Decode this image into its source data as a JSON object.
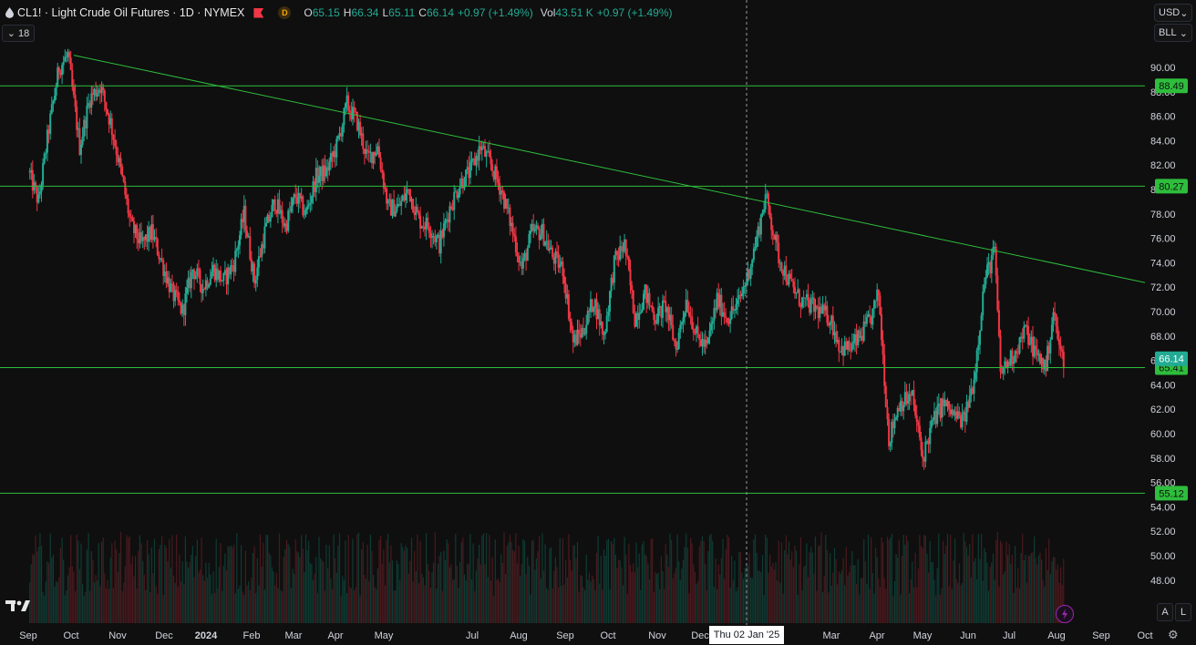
{
  "legend": {
    "title": "CL1! · Light Crude Oil Futures · 1D · NYMEX",
    "badge": "D",
    "o_key": "O",
    "o_val": "65.15",
    "h_key": "H",
    "h_val": "66.34",
    "l_key": "L",
    "l_val": "65.11",
    "c_key": "C",
    "c_val": "66.14",
    "change": "+0.97 (+1.49%)",
    "vol_key": "Vol",
    "vol_val": "43.51 K",
    "vol_change": "+0.97 (+1.49%)"
  },
  "indicator_count": "18",
  "axis_controls": {
    "currency": "USD",
    "unit": "BLL",
    "auto_btn": "A",
    "log_btn": "L"
  },
  "crosshair_date": "Thu 02 Jan '25",
  "colors": {
    "up": "#22ab94",
    "down": "#f23645",
    "level_line": "#2ebd3c",
    "trendline": "#2ebd3c",
    "background": "#0f0f0f"
  },
  "chart_data": {
    "type": "candlestick",
    "symbol": "CL1!",
    "price_axis_ticks": [
      "90.00",
      "88.00",
      "86.00",
      "84.00",
      "82.00",
      "80.00",
      "78.00",
      "76.00",
      "74.00",
      "72.00",
      "70.00",
      "68.00",
      "66.00",
      "64.00",
      "62.00",
      "60.00",
      "58.00",
      "56.00",
      "54.00",
      "52.00",
      "50.00",
      "48.00"
    ],
    "time_axis_labels": [
      "Sep",
      "Oct",
      "Nov",
      "Dec",
      "2024",
      "Feb",
      "Mar",
      "Apr",
      "May",
      "Jul",
      "Aug",
      "Sep",
      "Oct",
      "Nov",
      "Dec",
      "Mar",
      "Apr",
      "May",
      "Jun",
      "Jul",
      "Aug",
      "Sep",
      "Oct"
    ],
    "horizontal_levels": [
      "88.49",
      "80.27",
      "65.41",
      "55.12"
    ],
    "last_price": "66.14",
    "trendline": {
      "from": {
        "date": "2023-10-02",
        "price": 91.0
      },
      "to": {
        "date": "2025-10-15",
        "price": 72.0
      }
    },
    "price_path": [
      [
        "2023-09-01",
        81.5
      ],
      [
        "2023-09-08",
        79.0
      ],
      [
        "2023-09-15",
        85.0
      ],
      [
        "2023-09-22",
        90.0
      ],
      [
        "2023-09-28",
        91.0
      ],
      [
        "2023-10-06",
        83.5
      ],
      [
        "2023-10-13",
        87.5
      ],
      [
        "2023-10-20",
        88.5
      ],
      [
        "2023-10-27",
        85.5
      ],
      [
        "2023-11-03",
        81.5
      ],
      [
        "2023-11-10",
        77.0
      ],
      [
        "2023-11-17",
        75.5
      ],
      [
        "2023-11-24",
        76.5
      ],
      [
        "2023-12-01",
        74.0
      ],
      [
        "2023-12-08",
        71.5
      ],
      [
        "2023-12-15",
        70.0
      ],
      [
        "2023-12-22",
        73.5
      ],
      [
        "2023-12-29",
        72.0
      ],
      [
        "2024-01-05",
        73.5
      ],
      [
        "2024-01-12",
        72.5
      ],
      [
        "2024-01-19",
        74.0
      ],
      [
        "2024-01-26",
        78.0
      ],
      [
        "2024-02-02",
        72.5
      ],
      [
        "2024-02-09",
        76.5
      ],
      [
        "2024-02-16",
        79.0
      ],
      [
        "2024-02-23",
        77.0
      ],
      [
        "2024-03-01",
        79.5
      ],
      [
        "2024-03-08",
        78.0
      ],
      [
        "2024-03-15",
        81.0
      ],
      [
        "2024-03-22",
        81.5
      ],
      [
        "2024-03-29",
        83.5
      ],
      [
        "2024-04-05",
        87.0
      ],
      [
        "2024-04-12",
        85.5
      ],
      [
        "2024-04-19",
        82.5
      ],
      [
        "2024-04-26",
        83.5
      ],
      [
        "2024-05-03",
        78.5
      ],
      [
        "2024-05-10",
        78.5
      ],
      [
        "2024-05-17",
        80.0
      ],
      [
        "2024-05-24",
        77.5
      ],
      [
        "2024-05-31",
        77.0
      ],
      [
        "2024-06-07",
        75.5
      ],
      [
        "2024-06-14",
        78.5
      ],
      [
        "2024-06-21",
        80.5
      ],
      [
        "2024-06-28",
        81.5
      ],
      [
        "2024-07-05",
        83.5
      ],
      [
        "2024-07-12",
        82.0
      ],
      [
        "2024-07-19",
        80.0
      ],
      [
        "2024-07-26",
        77.0
      ],
      [
        "2024-08-02",
        73.5
      ],
      [
        "2024-08-09",
        76.5
      ],
      [
        "2024-08-16",
        76.5
      ],
      [
        "2024-08-23",
        74.5
      ],
      [
        "2024-08-30",
        73.5
      ],
      [
        "2024-09-06",
        67.5
      ],
      [
        "2024-09-13",
        68.5
      ],
      [
        "2024-09-20",
        71.0
      ],
      [
        "2024-09-27",
        68.0
      ],
      [
        "2024-10-04",
        74.0
      ],
      [
        "2024-10-11",
        75.5
      ],
      [
        "2024-10-18",
        69.5
      ],
      [
        "2024-10-25",
        71.5
      ],
      [
        "2024-11-01",
        69.5
      ],
      [
        "2024-11-08",
        70.5
      ],
      [
        "2024-11-15",
        67.0
      ],
      [
        "2024-11-22",
        71.0
      ],
      [
        "2024-11-29",
        68.0
      ],
      [
        "2024-12-06",
        67.0
      ],
      [
        "2024-12-13",
        71.0
      ],
      [
        "2024-12-20",
        69.5
      ],
      [
        "2024-12-27",
        70.5
      ],
      [
        "2025-01-03",
        73.0
      ],
      [
        "2025-01-10",
        76.5
      ],
      [
        "2025-01-15",
        79.5
      ],
      [
        "2025-01-24",
        74.5
      ],
      [
        "2025-01-31",
        72.5
      ],
      [
        "2025-02-07",
        71.0
      ],
      [
        "2025-02-14",
        70.5
      ],
      [
        "2025-02-21",
        70.0
      ],
      [
        "2025-02-28",
        69.5
      ],
      [
        "2025-03-07",
        67.0
      ],
      [
        "2025-03-14",
        67.0
      ],
      [
        "2025-03-21",
        68.0
      ],
      [
        "2025-03-28",
        69.5
      ],
      [
        "2025-04-02",
        71.5
      ],
      [
        "2025-04-09",
        59.5
      ],
      [
        "2025-04-16",
        62.5
      ],
      [
        "2025-04-25",
        63.0
      ],
      [
        "2025-05-02",
        58.0
      ],
      [
        "2025-05-09",
        61.0
      ],
      [
        "2025-05-16",
        62.5
      ],
      [
        "2025-05-23",
        61.5
      ],
      [
        "2025-05-30",
        61.0
      ],
      [
        "2025-06-06",
        64.5
      ],
      [
        "2025-06-13",
        72.5
      ],
      [
        "2025-06-20",
        75.0
      ],
      [
        "2025-06-24",
        65.0
      ],
      [
        "2025-07-03",
        66.5
      ],
      [
        "2025-07-11",
        68.5
      ],
      [
        "2025-07-18",
        66.5
      ],
      [
        "2025-07-25",
        65.5
      ],
      [
        "2025-07-30",
        70.0
      ],
      [
        "2025-08-04",
        66.5
      ],
      [
        "2025-08-06",
        66.14
      ]
    ]
  }
}
